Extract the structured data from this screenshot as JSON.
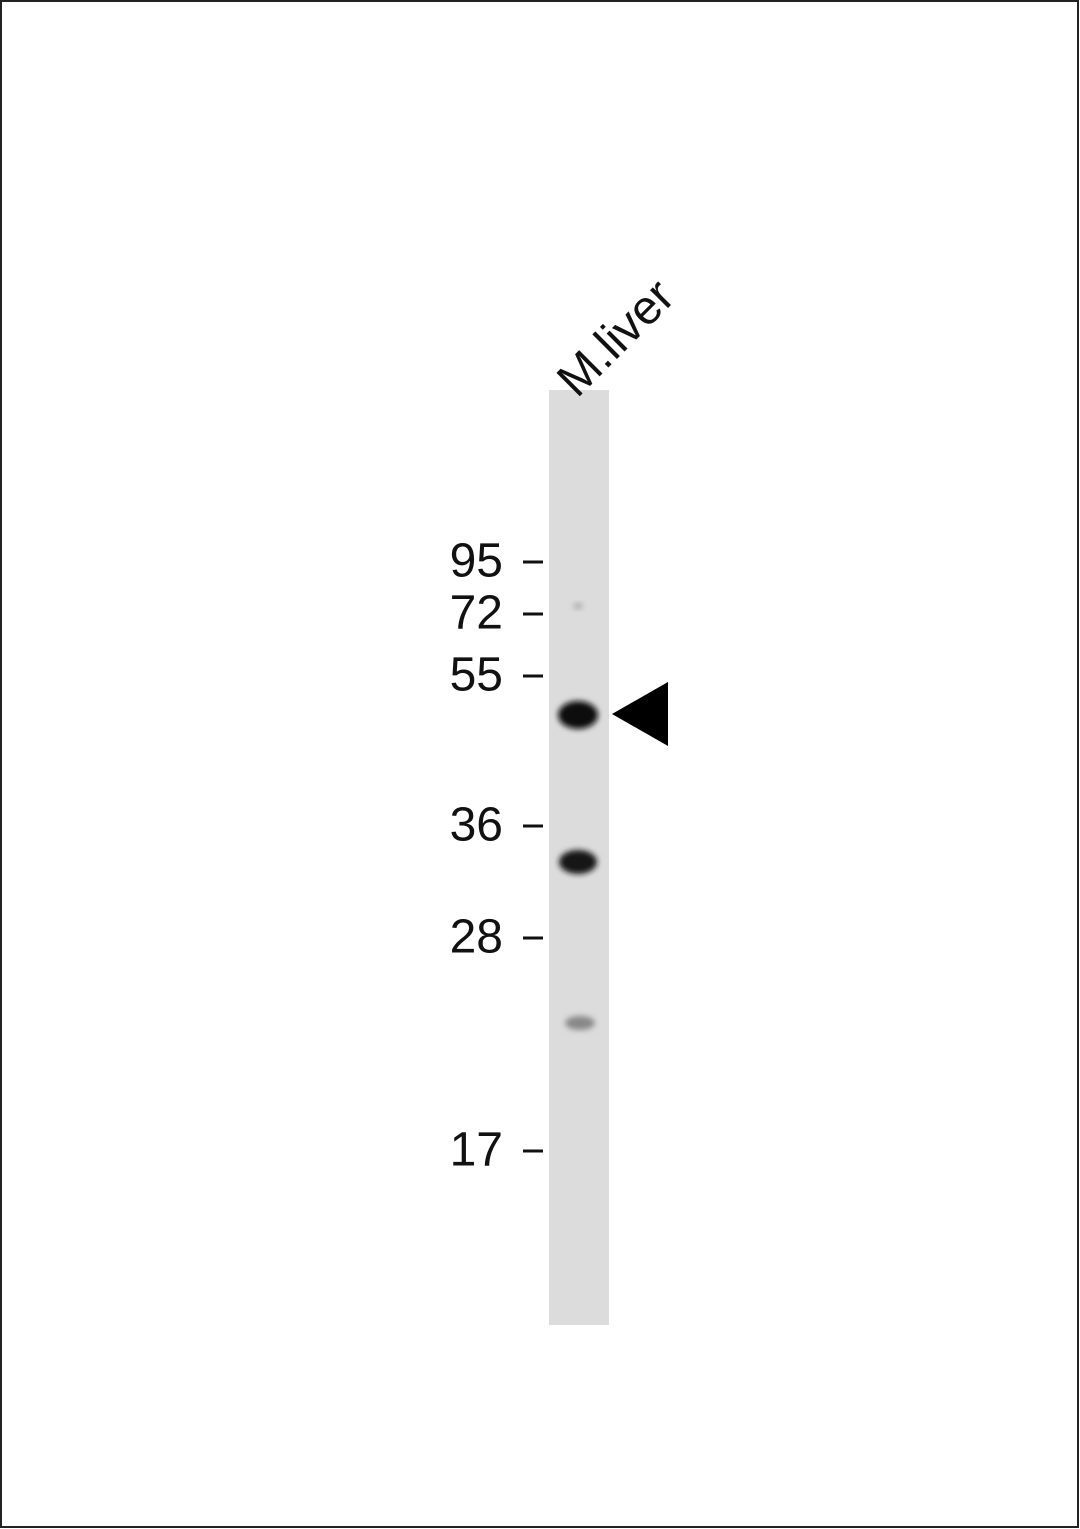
{
  "lane": {
    "label": "M.liver"
  },
  "markers": [
    95,
    72,
    55,
    36,
    28,
    17
  ]
}
